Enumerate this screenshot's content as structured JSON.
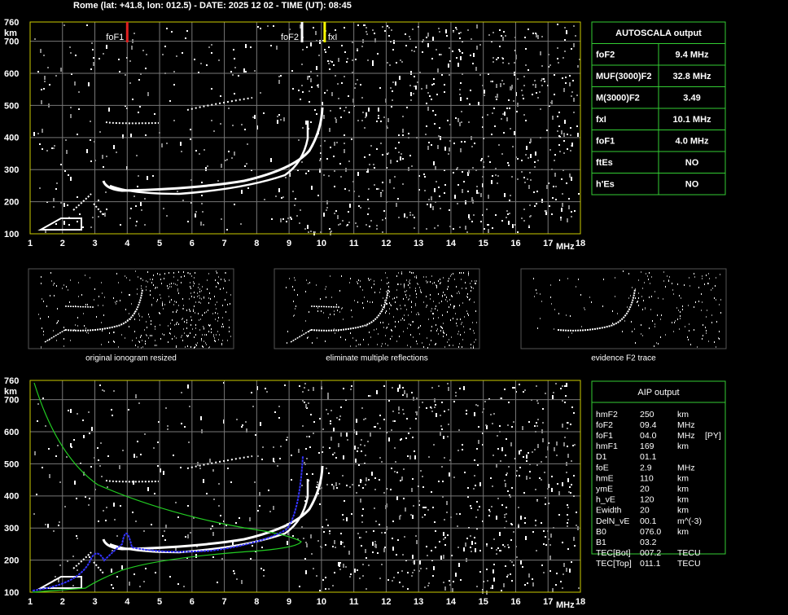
{
  "header": "Rome (lat: +41.8, lon: 012.5) - DATE: 2025 12 02 - TIME (UT): 08:45",
  "axes": {
    "x_unit": "MHz",
    "y_unit": "km",
    "xlim": [
      1,
      18
    ],
    "ylim": [
      100,
      760
    ],
    "xticks": [
      1,
      2,
      3,
      4,
      5,
      6,
      7,
      8,
      9,
      10,
      11,
      12,
      13,
      14,
      15,
      16,
      17,
      18
    ],
    "yticks": [
      100,
      200,
      300,
      400,
      500,
      600,
      700,
      760
    ],
    "grid": true
  },
  "markers": [
    {
      "label": "foF1",
      "value": 4.0,
      "color": "#e02020"
    },
    {
      "label": "foF2",
      "value": 9.4,
      "color": "#ffffff"
    },
    {
      "label": "fxI",
      "value": 10.1,
      "color": "#ffff00"
    }
  ],
  "autoscala": {
    "title": "AUTOSCALA output",
    "rows": [
      {
        "name": "foF2",
        "value": "9.4 MHz",
        "color": "#ffffff"
      },
      {
        "name": "MUF(3000)F2",
        "value": "32.8 MHz",
        "color": "#ffffff"
      },
      {
        "name": "M(3000)F2",
        "value": "3.49",
        "color": "#ffffff"
      },
      {
        "name": "fxI",
        "value": "10.1 MHz",
        "color": "#ffff00"
      },
      {
        "name": "foF1",
        "value": "4.0 MHz",
        "color": "#ff2020"
      },
      {
        "name": "ftEs",
        "value": "NO",
        "color": "#3399ff"
      },
      {
        "name": "h'Es",
        "value": "NO",
        "color": "#ffffff"
      }
    ]
  },
  "thumbnails": [
    "original ionogram resized",
    "eliminate multiple reflections",
    "evidence F2 trace"
  ],
  "aip": {
    "title": "AIP output",
    "rows": [
      [
        "hmF2",
        "250",
        "km"
      ],
      [
        "foF2",
        "09.4",
        "MHz"
      ],
      [
        "foF1",
        "04.0",
        "MHz",
        "[PY]"
      ],
      [
        "hmF1",
        "169",
        "km"
      ],
      [
        "D1",
        "01.1"
      ],
      [
        "foE",
        "2.9",
        "MHz"
      ],
      [
        "hmE",
        "110",
        "km"
      ],
      [
        "ymE",
        "20",
        "km"
      ],
      [
        "h_vE",
        "120",
        "km"
      ],
      [
        "Ewidth",
        "20",
        "km"
      ],
      [
        "DelN_vE",
        "00.1",
        "m^(-3)"
      ],
      [
        "B0",
        "076.0",
        "km"
      ],
      [
        "B1",
        "03.2"
      ],
      [
        "TEC[Bot]",
        "007.2",
        "TECU"
      ],
      [
        "TEC[Top]",
        "011.1",
        "TECU"
      ]
    ]
  }
}
